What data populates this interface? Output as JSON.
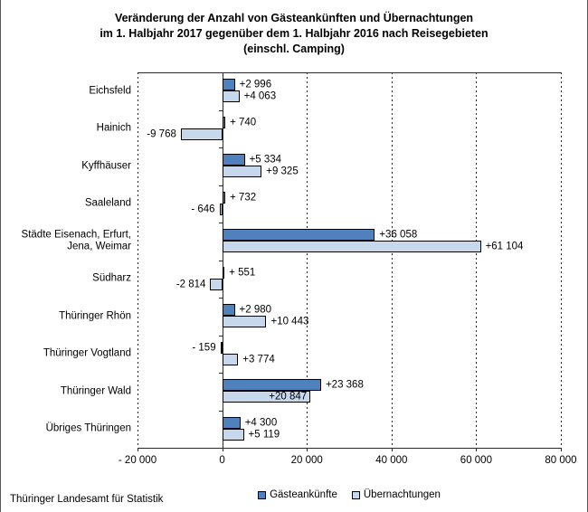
{
  "title": {
    "line1": "Veränderung der Anzahl von Gästeankünften und Übernachtungen",
    "line2": "im 1. Halbjahr 2017 gegenüber dem 1. Halbjahr 2016 nach Reisegebieten",
    "line3": "(einschl. Camping)"
  },
  "footer": {
    "source": "Thüringer Landesamt für Statistik"
  },
  "colors": {
    "series1": "#4f81bd",
    "series2": "#c7d7ec",
    "bar_border": "#000000",
    "axis": "#2a2a2a"
  },
  "chart_data": {
    "type": "bar",
    "orientation": "horizontal",
    "title": "Veränderung der Anzahl von Gästeankünften und Übernachtungen im 1. Halbjahr 2017 gegenüber dem 1. Halbjahr 2016 nach Reisegebieten (einschl. Camping)",
    "categories": [
      "Eichsfeld",
      "Hainich",
      "Kyffhäuser",
      "Saaleland",
      "Städte Eisenach, Erfurt,\nJena, Weimar",
      "Südharz",
      "Thüringer Rhön",
      "Thüringer Vogtland",
      "Thüringer Wald",
      "Übriges Thüringen"
    ],
    "series": [
      {
        "name": "Gästeankünfte",
        "color": "#4f81bd",
        "values": [
          2996,
          740,
          5334,
          732,
          36058,
          551,
          2980,
          -159,
          23368,
          4300
        ],
        "labels": [
          "+2 996",
          "+ 740",
          "+5 334",
          "+ 732",
          "+36 058",
          "+ 551",
          "+2 980",
          "- 159",
          "+23 368",
          "+4 300"
        ],
        "label_side": [
          "right",
          "right",
          "right",
          "right",
          "right",
          "right",
          "right",
          "left",
          "right",
          "right"
        ]
      },
      {
        "name": "Übernachtungen",
        "color": "#c7d7ec",
        "values": [
          4063,
          -9768,
          9325,
          -646,
          61104,
          -2814,
          10443,
          3774,
          20847,
          5119
        ],
        "labels": [
          "+4 063",
          "-9 768",
          "+9 325",
          "- 646",
          "+61 104",
          "-2 814",
          "+10 443",
          "+3 774",
          "+20 847",
          "+5 119"
        ],
        "label_side": [
          "right",
          "left",
          "right",
          "left",
          "right",
          "left",
          "right",
          "right",
          "inside",
          "right"
        ]
      }
    ],
    "xlim": [
      -20000,
      80000
    ],
    "xticks": [
      {
        "label": "- 20 000",
        "value": -20000
      },
      {
        "label": "0",
        "value": 0
      },
      {
        "label": "20 000",
        "value": 20000
      },
      {
        "label": "40 000",
        "value": 40000
      },
      {
        "label": "60 000",
        "value": 60000
      },
      {
        "label": "80 000",
        "value": 80000
      }
    ],
    "xlabel": "",
    "ylabel": "",
    "grid": "vertical-dashed",
    "legend_position": "bottom"
  }
}
